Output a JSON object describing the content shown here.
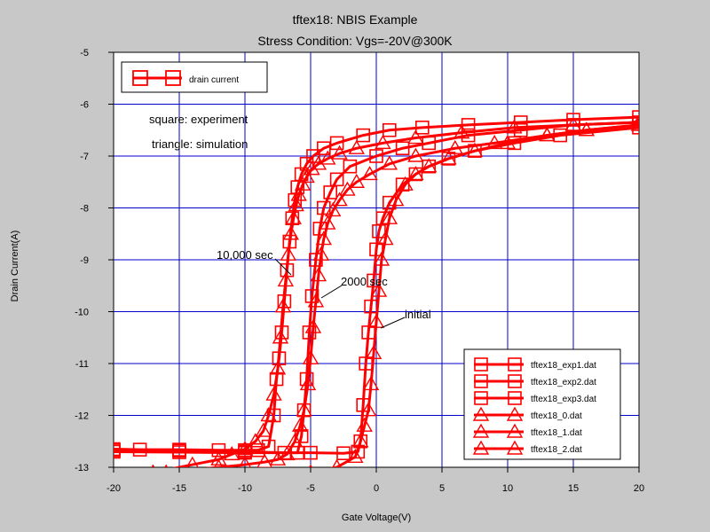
{
  "chart_data": {
    "type": "line",
    "title": "tftex18: NBIS Example",
    "subtitle": "Stress Condition: Vgs=-20V@300K",
    "xlabel": "Gate Voltage(V)",
    "ylabel": "Drain Current(A)",
    "xlim": [
      -20,
      20
    ],
    "ylim": [
      -13,
      -5
    ],
    "x_ticks": [
      "-20",
      "-15",
      "-10",
      "-5",
      "0",
      "5",
      "10",
      "15",
      "20"
    ],
    "y_ticks": [
      "-5",
      "-6",
      "-7",
      "-8",
      "-9",
      "-10",
      "-11",
      "-12",
      "-13"
    ],
    "grid": true,
    "colors": {
      "series": "#ff0000",
      "grid": "#0000cc",
      "background": "#c8c8c8",
      "plot": "#ffffff"
    },
    "top_legend": {
      "label": "drain current",
      "placement": "top-left"
    },
    "legend_placement": "bottom-right",
    "annotations": {
      "note1": "square: experiment",
      "note2": "triangle: simulation",
      "label_10000": "10,000 sec",
      "label_2000": "2000 sec",
      "label_initial": "initial"
    },
    "series": [
      {
        "name": "tftex18_exp1.dat",
        "marker": "square",
        "x": [
          -20,
          -18,
          -15,
          -12,
          -10,
          -9,
          -8.2,
          -7.8,
          -7.6,
          -7.4,
          -7.2,
          -7.0,
          -6.8,
          -6.6,
          -6.4,
          -6.2,
          -6.0,
          -5.7,
          -5.3,
          -4.8,
          -4.0,
          -3.0,
          -1.0,
          1.0,
          3.5,
          7.0,
          11.0,
          15.0,
          20.0
        ],
        "y": [
          -12.65,
          -12.66,
          -12.66,
          -12.67,
          -12.67,
          -12.67,
          -12.6,
          -12.0,
          -11.3,
          -10.9,
          -10.4,
          -9.8,
          -9.2,
          -8.65,
          -8.2,
          -7.85,
          -7.6,
          -7.35,
          -7.15,
          -7.0,
          -6.85,
          -6.75,
          -6.6,
          -6.5,
          -6.45,
          -6.4,
          -6.35,
          -6.3,
          -6.25
        ]
      },
      {
        "name": "tftex18_exp2.dat",
        "marker": "square",
        "x": [
          -20,
          -15,
          -10,
          -7,
          -6.0,
          -5.7,
          -5.5,
          -5.3,
          -5.1,
          -4.9,
          -4.6,
          -4.3,
          -4.0,
          -3.5,
          -3.0,
          -2.0,
          0,
          2.0,
          4.0,
          7.0,
          11.0,
          15.0,
          20.0
        ],
        "y": [
          -12.67,
          -12.68,
          -12.7,
          -12.72,
          -12.72,
          -12.4,
          -11.9,
          -11.3,
          -10.4,
          -9.7,
          -9.0,
          -8.4,
          -8.0,
          -7.7,
          -7.45,
          -7.2,
          -7.0,
          -6.85,
          -6.75,
          -6.6,
          -6.5,
          -6.4,
          -6.35
        ]
      },
      {
        "name": "tftex18_exp3.dat",
        "marker": "square",
        "x": [
          -20,
          -15,
          -10,
          -5,
          -2.5,
          -1.4,
          -1.2,
          -1.0,
          -0.8,
          -0.6,
          -0.4,
          -0.2,
          0,
          0.2,
          0.5,
          1.0,
          2.0,
          3.0,
          4.0,
          5.5,
          7.5,
          10.5,
          14.0,
          20.0
        ],
        "y": [
          -12.7,
          -12.71,
          -12.72,
          -12.72,
          -12.73,
          -12.7,
          -12.5,
          -11.8,
          -11.0,
          -10.4,
          -9.9,
          -9.4,
          -8.8,
          -8.45,
          -8.2,
          -7.9,
          -7.55,
          -7.35,
          -7.2,
          -7.05,
          -6.9,
          -6.75,
          -6.6,
          -6.45
        ]
      },
      {
        "name": "tftex18_0.dat",
        "marker": "triangle",
        "x": [
          -20,
          -15,
          -10,
          -7,
          -5,
          -3,
          -1.6,
          -1.2,
          -0.9,
          -0.6,
          -0.4,
          -0.2,
          0,
          0.2,
          0.4,
          0.7,
          1.0,
          1.5,
          2.2,
          3.0,
          4.0,
          5.5,
          7.5,
          10.0,
          13.0,
          16.0,
          20.0
        ],
        "y": [
          -13.3,
          -13.25,
          -13.2,
          -13.15,
          -13.1,
          -13.0,
          -12.8,
          -12.5,
          -12.2,
          -11.9,
          -11.4,
          -10.8,
          -10.2,
          -9.6,
          -9.0,
          -8.6,
          -8.2,
          -7.85,
          -7.55,
          -7.35,
          -7.2,
          -7.05,
          -6.9,
          -6.75,
          -6.6,
          -6.5,
          -6.4
        ]
      },
      {
        "name": "tftex18_1.dat",
        "marker": "triangle",
        "x": [
          -20,
          -16,
          -12,
          -10,
          -8.5,
          -7.5,
          -6.8,
          -6.2,
          -5.8,
          -5.5,
          -5.2,
          -5.0,
          -4.8,
          -4.6,
          -4.4,
          -4.2,
          -4.0,
          -3.7,
          -3.3,
          -2.8,
          -2.2,
          -1.5,
          -0.5,
          1.0,
          3.0,
          6.0,
          9.0,
          13.0,
          16.0,
          20.0
        ],
        "y": [
          -13.15,
          -13.1,
          -13.0,
          -12.95,
          -12.9,
          -12.85,
          -12.75,
          -12.5,
          -12.2,
          -11.9,
          -11.4,
          -10.9,
          -10.3,
          -9.8,
          -9.3,
          -8.9,
          -8.6,
          -8.3,
          -8.05,
          -7.85,
          -7.65,
          -7.5,
          -7.35,
          -7.15,
          -7.0,
          -6.85,
          -6.75,
          -6.6,
          -6.5,
          -6.4
        ]
      },
      {
        "name": "tftex18_2.dat",
        "marker": "triangle",
        "x": [
          -20,
          -17,
          -14,
          -12,
          -11,
          -10,
          -9.2,
          -8.6,
          -8.2,
          -7.8,
          -7.5,
          -7.3,
          -7.1,
          -6.9,
          -6.7,
          -6.5,
          -6.3,
          -6.1,
          -5.9,
          -5.6,
          -5.3,
          -4.9,
          -4.4,
          -3.7,
          -2.8,
          -1.5,
          0.5,
          3.0,
          6.5,
          10.5,
          15.0,
          20.0
        ],
        "y": [
          -13.2,
          -13.1,
          -12.95,
          -12.85,
          -12.75,
          -12.65,
          -12.5,
          -12.3,
          -12.0,
          -11.6,
          -11.1,
          -10.5,
          -9.9,
          -9.4,
          -8.9,
          -8.5,
          -8.2,
          -7.95,
          -7.75,
          -7.55,
          -7.4,
          -7.25,
          -7.15,
          -7.05,
          -6.95,
          -6.85,
          -6.75,
          -6.65,
          -6.55,
          -6.45,
          -6.4,
          -6.35
        ]
      }
    ]
  }
}
